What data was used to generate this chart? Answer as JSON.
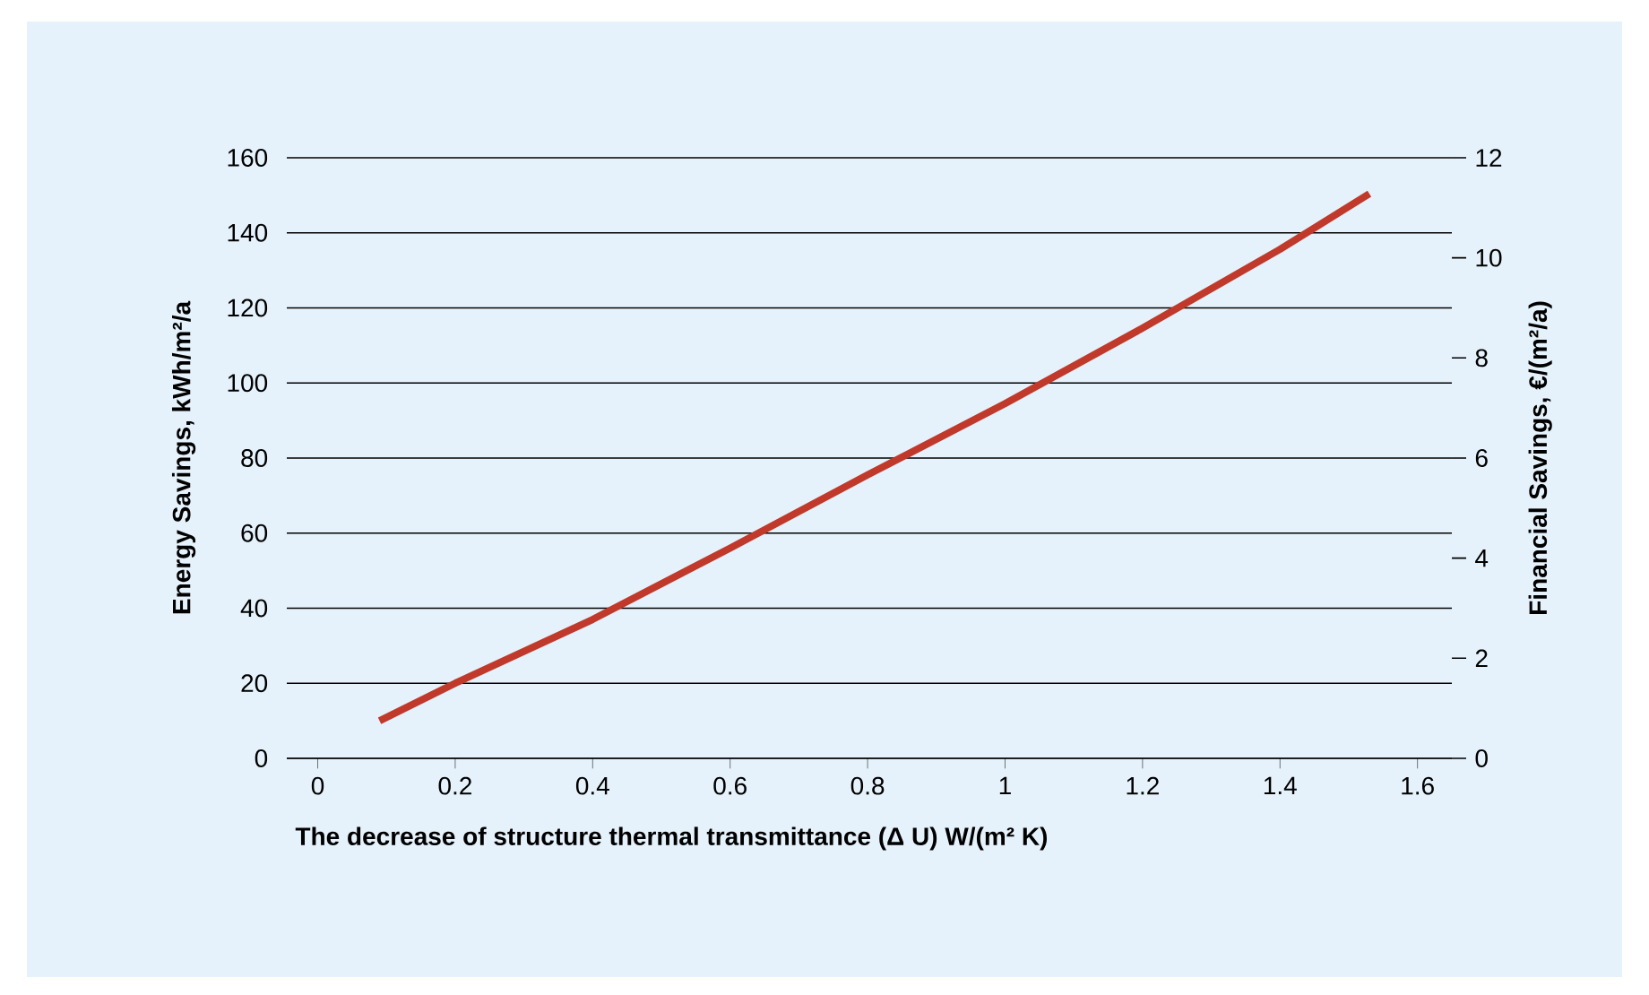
{
  "chart_data": {
    "type": "line",
    "xlabel": "The decrease of structure thermal transmittance (Δ U) W/(m² K)",
    "ylabel": "Energy Savings, kWh/m²/a",
    "y2label": "Financial Savings, €/(m²/a)",
    "x": [
      0.09,
      0.2,
      0.4,
      0.6,
      0.8,
      1.0,
      1.2,
      1.4,
      1.53
    ],
    "series": [
      {
        "color": "#c0392b",
        "values": [
          10,
          20,
          37,
          56,
          75.5,
          94.5,
          114.6,
          135.6,
          150.4
        ]
      }
    ],
    "xlim": [
      -0.045,
      1.65
    ],
    "xticks": [
      0,
      0.2,
      0.4,
      0.6,
      0.8,
      1,
      1.2,
      1.4,
      1.6
    ],
    "ylim": [
      0,
      160
    ],
    "yticks": [
      0,
      20,
      40,
      60,
      80,
      100,
      120,
      140,
      160
    ],
    "y2lim": [
      0,
      12
    ],
    "y2ticks": [
      0,
      2,
      4,
      6,
      8,
      10,
      12
    ],
    "grid": "y",
    "marker": "none",
    "line_style": "solid"
  }
}
